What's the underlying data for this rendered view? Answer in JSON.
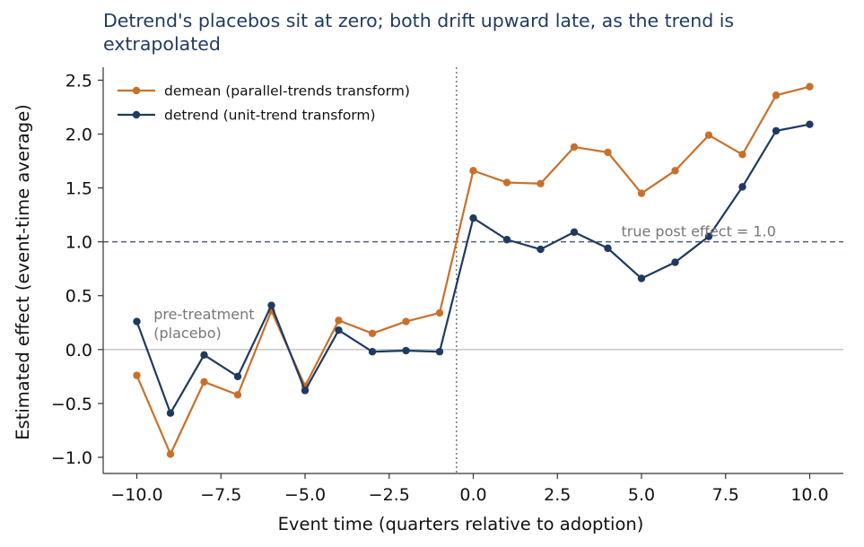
{
  "chart_data": {
    "type": "line",
    "title": "Detrend's placebos sit at zero; both drift upward late, as the trend is extrapolated",
    "xlabel": "Event time (quarters relative to adoption)",
    "ylabel": "Estimated effect (event-time average)",
    "xlim": [
      -11,
      11
    ],
    "ylim": [
      -1.15,
      2.62
    ],
    "xticks": [
      -10.0,
      -7.5,
      -5.0,
      -2.5,
      0.0,
      2.5,
      5.0,
      7.5,
      10.0
    ],
    "xtick_labels": [
      "−10.0",
      "−7.5",
      "−5.0",
      "−2.5",
      "0.0",
      "2.5",
      "5.0",
      "7.5",
      "10.0"
    ],
    "yticks": [
      -1.0,
      -0.5,
      0.0,
      0.5,
      1.0,
      1.5,
      2.0,
      2.5
    ],
    "ytick_labels": [
      "−1.0",
      "−0.5",
      "0.0",
      "0.5",
      "1.0",
      "1.5",
      "2.0",
      "2.5"
    ],
    "grid": false,
    "legend_position": "top-left",
    "x": [
      -10,
      -9,
      -8,
      -7,
      -6,
      -5,
      -4,
      -3,
      -2,
      -1,
      0,
      1,
      2,
      3,
      4,
      5,
      6,
      7,
      8,
      9,
      10
    ],
    "series": [
      {
        "name": "demean (parallel-trends transform)",
        "color": "#c8702a",
        "values": [
          -0.24,
          -0.97,
          -0.3,
          -0.42,
          0.36,
          -0.34,
          0.27,
          0.15,
          0.26,
          0.34,
          1.66,
          1.55,
          1.54,
          1.88,
          1.83,
          1.45,
          1.66,
          1.99,
          1.81,
          2.36,
          2.44
        ]
      },
      {
        "name": "detrend (unit-trend transform)",
        "color": "#1f3a5f",
        "values": [
          0.26,
          -0.59,
          -0.05,
          -0.25,
          0.41,
          -0.38,
          0.18,
          -0.02,
          -0.01,
          -0.02,
          1.22,
          1.02,
          0.93,
          1.09,
          0.94,
          0.66,
          0.81,
          1.05,
          1.51,
          2.03,
          2.09
        ]
      }
    ],
    "reference_lines": [
      {
        "orientation": "horizontal",
        "value": 1.0,
        "style": "dashed",
        "color": "#555c78"
      },
      {
        "orientation": "horizontal",
        "value": 0.0,
        "style": "solid",
        "color": "#b5b5b5"
      },
      {
        "orientation": "vertical",
        "value": -0.5,
        "style": "dotted",
        "color": "#777777"
      }
    ],
    "annotations": [
      {
        "text": "true post effect = 1.0",
        "x": 4.4,
        "y": 1.0
      },
      {
        "text": "pre-treatment\n(placebo)",
        "x": -9.5,
        "y": 0.2
      }
    ]
  }
}
